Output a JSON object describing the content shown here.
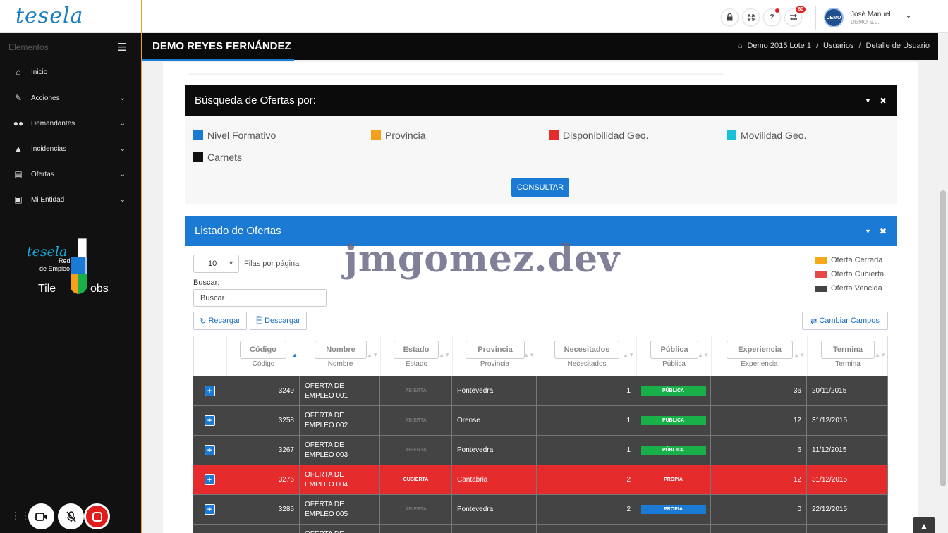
{
  "app": {
    "logo": "tesela"
  },
  "topbar": {
    "icons": [
      "lock-icon",
      "expand-icon",
      "help-icon",
      "tasks-icon"
    ],
    "help_label": "?",
    "tasks_badge": "60",
    "avatar_text": "DEMO",
    "user_name": "José Manuel",
    "user_org": "DEMO S.L."
  },
  "sidebar": {
    "header": "Elementos",
    "items": [
      {
        "label": "Inicio",
        "icon": "home-icon",
        "has_submenu": false
      },
      {
        "label": "Acciones",
        "icon": "edit-icon",
        "has_submenu": true
      },
      {
        "label": "Demandantes",
        "icon": "users-icon",
        "has_submenu": true
      },
      {
        "label": "Incidencias",
        "icon": "warning-icon",
        "has_submenu": true
      },
      {
        "label": "Ofertas",
        "icon": "list-icon",
        "has_submenu": true
      },
      {
        "label": "Mi Entidad",
        "icon": "briefcase-icon",
        "has_submenu": true
      }
    ],
    "brand_logo": {
      "line1": "tesela",
      "line2": "Red",
      "line3": "de Empleo",
      "line4a": "Tile",
      "line4b": "obs"
    }
  },
  "pagebar": {
    "title": "DEMO REYES FERNÁNDEZ",
    "breadcrumb": [
      "Demo 2015 Lote 1",
      "Usuarios",
      "Detalle de Usuario"
    ],
    "breadcrumb_sep": "/"
  },
  "search_panel": {
    "title": "Búsqueda de Ofertas por:",
    "filters": [
      {
        "label": "Nivel Formativo",
        "color": "#1a7ad4"
      },
      {
        "label": "Provincia",
        "color": "#f5a01a"
      },
      {
        "label": "Disponibilidad Geo.",
        "color": "#e52b2b"
      },
      {
        "label": "Movilidad Geo.",
        "color": "#17c1d8"
      },
      {
        "label": "Carnets",
        "color": "#111111"
      }
    ],
    "consult_button": "CONSULTAR"
  },
  "list_panel": {
    "title": "Listado de Ofertas",
    "rows_per_page": "10",
    "rows_per_page_label": "Filas por página",
    "search_label": "Buscar:",
    "search_placeholder": "Buscar",
    "legend": [
      {
        "label": "Oferta Cerrada",
        "color": "#f5a81a"
      },
      {
        "label": "Oferta Cubierta",
        "color": "#e54848"
      },
      {
        "label": "Oferta Vencida",
        "color": "#444444"
      }
    ],
    "buttons": {
      "reload": "Recargar",
      "download": "Descargar",
      "change_fields": "Cambiar Campos"
    },
    "columns": [
      "Código",
      "Nombre",
      "Estado",
      "Provincia",
      "Necesitados",
      "Pública",
      "Experiencia",
      "Termina"
    ],
    "rows": [
      {
        "codigo": "3249",
        "nombre": "OFERTA DE EMPLEO 001",
        "estado": "ABIERTA",
        "provincia": "Pontevedra",
        "necesitados": "1",
        "publica": "PÚBLICA",
        "publica_color": "#19b049",
        "experiencia": "36",
        "termina": "20/11/2015",
        "row_color": "#444444"
      },
      {
        "codigo": "3258",
        "nombre": "OFERTA DE EMPLEO 002",
        "estado": "ABIERTA",
        "provincia": "Orense",
        "necesitados": "1",
        "publica": "PÚBLICA",
        "publica_color": "#19b049",
        "experiencia": "12",
        "termina": "31/12/2015",
        "row_color": "#444444"
      },
      {
        "codigo": "3267",
        "nombre": "OFERTA DE EMPLEO 003",
        "estado": "ABIERTA",
        "provincia": "Pontevedra",
        "necesitados": "1",
        "publica": "PÚBLICA",
        "publica_color": "#19b049",
        "experiencia": "6",
        "termina": "11/12/2015",
        "row_color": "#444444"
      },
      {
        "codigo": "3276",
        "nombre": "OFERTA DE EMPLEO 004",
        "estado": "CUBIERTA",
        "provincia": "Cantabria",
        "necesitados": "2",
        "publica": "PROPIA",
        "publica_color": "#e52b2b",
        "experiencia": "12",
        "termina": "31/12/2015",
        "row_color": "#e52b2b"
      },
      {
        "codigo": "3285",
        "nombre": "OFERTA DE EMPLEO 005",
        "estado": "ABIERTA",
        "provincia": "Pontevedra",
        "necesitados": "2",
        "publica": "PROPIA",
        "publica_color": "#1a7ad4",
        "experiencia": "0",
        "termina": "22/12/2015",
        "row_color": "#444444"
      },
      {
        "codigo": "",
        "nombre": "OFERTA DE EMPLEO",
        "estado": "",
        "provincia": "",
        "necesitados": "",
        "publica": "",
        "publica_color": "",
        "experiencia": "",
        "termina": "",
        "row_color": "#444444"
      }
    ]
  },
  "watermark": "jmgomez.dev",
  "recorder": {
    "buttons": [
      "camera-icon",
      "mic-off-icon",
      "stop-icon"
    ]
  }
}
